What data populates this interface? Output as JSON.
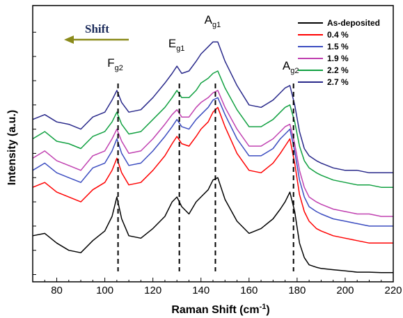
{
  "chart_data": {
    "type": "line",
    "xlabel": "Raman Shift (cm",
    "xlabel_sup": "-1",
    "xlabel_close": ")",
    "ylabel": "Intensity (a.u.)",
    "xlim": [
      70,
      220
    ],
    "xticks": [
      "80",
      "100",
      "120",
      "140",
      "160",
      "180",
      "200",
      "220"
    ],
    "yticks_labeled": false,
    "grid": false,
    "legend_position": "top-right",
    "shift_annotation": "Shift",
    "peaks": [
      {
        "main": "F",
        "sub": "g2",
        "x": 105.5
      },
      {
        "main": "E",
        "sub": "g1",
        "x": 131
      },
      {
        "main": "A",
        "sub": "g1",
        "x": 146
      },
      {
        "main": "A",
        "sub": "g2",
        "x": 178.5
      }
    ],
    "x": [
      70,
      75,
      80,
      85,
      90,
      95,
      100,
      103,
      105,
      107,
      110,
      115,
      120,
      125,
      128,
      130,
      132,
      135,
      138,
      140,
      143,
      145,
      147,
      150,
      155,
      160,
      165,
      170,
      173,
      175,
      177,
      179,
      181,
      183,
      185,
      188,
      190,
      195,
      200,
      205,
      210,
      215,
      220
    ],
    "series": [
      {
        "name": "As-deposited",
        "color": "#000000",
        "values": [
          1.6,
          1.7,
          1.3,
          1.0,
          0.9,
          1.4,
          1.8,
          2.4,
          3.2,
          2.3,
          1.6,
          1.5,
          1.9,
          2.4,
          3.0,
          3.2,
          2.8,
          2.5,
          3.0,
          3.2,
          3.5,
          3.9,
          4.0,
          3.1,
          2.2,
          1.7,
          1.9,
          2.3,
          2.7,
          3.0,
          3.4,
          2.6,
          1.3,
          0.7,
          0.4,
          0.3,
          0.25,
          0.2,
          0.15,
          0.1,
          0.1,
          0.08,
          0.08
        ]
      },
      {
        "name": "0.4 %",
        "color": "#ff0000",
        "values": [
          3.6,
          3.8,
          3.4,
          3.2,
          3.0,
          3.5,
          3.8,
          4.3,
          4.8,
          4.2,
          3.7,
          3.8,
          4.3,
          4.9,
          5.4,
          5.7,
          5.4,
          5.3,
          5.7,
          6.0,
          6.3,
          6.7,
          6.9,
          6.1,
          5.0,
          4.3,
          4.2,
          4.6,
          5.0,
          5.3,
          5.6,
          4.6,
          3.3,
          2.6,
          2.2,
          1.9,
          1.8,
          1.6,
          1.5,
          1.4,
          1.3,
          1.3,
          1.3
        ]
      },
      {
        "name": "1.5 %",
        "color": "#3b4cc0",
        "values": [
          4.3,
          4.6,
          4.2,
          4.0,
          3.8,
          4.4,
          4.6,
          5.1,
          5.6,
          5.0,
          4.5,
          4.6,
          5.1,
          5.7,
          6.1,
          6.4,
          6.1,
          6.0,
          6.4,
          6.6,
          6.9,
          7.2,
          7.3,
          6.6,
          5.6,
          4.9,
          4.9,
          5.2,
          5.6,
          5.8,
          6.0,
          5.1,
          3.9,
          3.2,
          2.8,
          2.6,
          2.5,
          2.3,
          2.2,
          2.1,
          2.0,
          2.0,
          2.0
        ]
      },
      {
        "name": "1.9 %",
        "color": "#c040b0",
        "values": [
          4.8,
          5.1,
          4.7,
          4.5,
          4.3,
          4.9,
          5.1,
          5.6,
          6.0,
          5.5,
          5.0,
          5.1,
          5.6,
          6.2,
          6.6,
          6.8,
          6.5,
          6.5,
          6.9,
          7.1,
          7.3,
          7.5,
          7.6,
          6.9,
          6.0,
          5.3,
          5.3,
          5.6,
          5.9,
          6.1,
          6.2,
          5.4,
          4.3,
          3.6,
          3.2,
          3.0,
          2.9,
          2.7,
          2.6,
          2.5,
          2.5,
          2.4,
          2.4
        ]
      },
      {
        "name": "2.2 %",
        "color": "#10a040",
        "values": [
          5.6,
          5.9,
          5.5,
          5.4,
          5.2,
          5.7,
          5.9,
          6.3,
          6.7,
          6.2,
          5.8,
          5.9,
          6.4,
          6.9,
          7.3,
          7.6,
          7.3,
          7.3,
          7.6,
          7.9,
          8.1,
          8.3,
          8.4,
          7.7,
          6.8,
          6.1,
          6.1,
          6.4,
          6.7,
          6.9,
          7.0,
          6.3,
          5.3,
          4.7,
          4.4,
          4.2,
          4.1,
          3.9,
          3.8,
          3.7,
          3.7,
          3.6,
          3.6
        ]
      },
      {
        "name": "2.7 %",
        "color": "#28288a",
        "values": [
          6.4,
          6.6,
          6.3,
          6.2,
          6.0,
          6.5,
          6.7,
          7.2,
          7.6,
          7.1,
          6.7,
          6.8,
          7.3,
          7.9,
          8.3,
          8.6,
          8.3,
          8.4,
          8.8,
          9.1,
          9.4,
          9.6,
          9.6,
          8.8,
          7.8,
          7.0,
          6.9,
          7.2,
          7.5,
          7.7,
          7.8,
          7.0,
          5.9,
          5.2,
          4.9,
          4.7,
          4.6,
          4.4,
          4.3,
          4.3,
          4.2,
          4.2,
          4.2
        ]
      }
    ]
  }
}
